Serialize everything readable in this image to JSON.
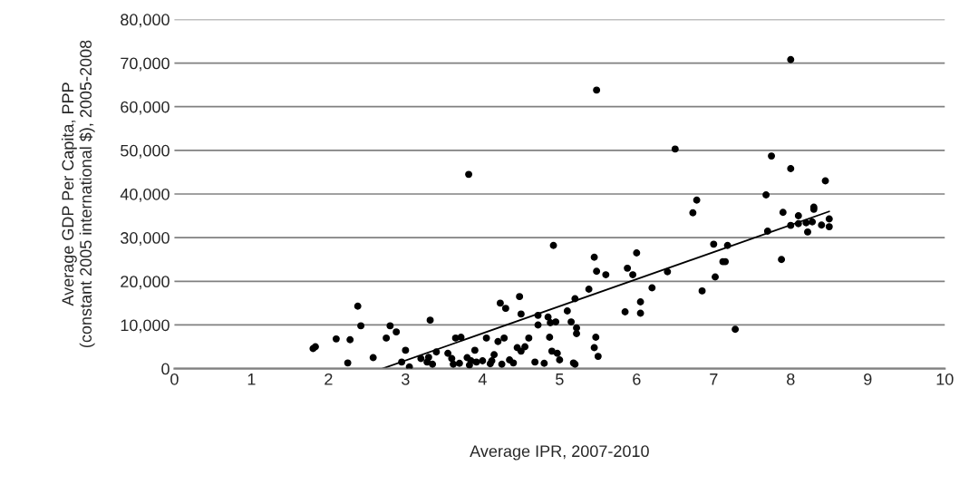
{
  "chart_data": {
    "type": "scatter",
    "xlabel": "Average IPR, 2007-2010",
    "ylabel": "Average GDP Per Capita, PPP\n(constant 2005 international $), 2005-2008",
    "xlim": [
      0,
      10
    ],
    "xticks": [
      0,
      1,
      2,
      3,
      4,
      5,
      6,
      7,
      8,
      9,
      10
    ],
    "ylim": [
      0,
      80000
    ],
    "yticks": [
      {
        "value": 0,
        "label": "0"
      },
      {
        "value": 10000,
        "label": "10,000"
      },
      {
        "value": 20000,
        "label": "20,000"
      },
      {
        "value": 30000,
        "label": "30,000"
      },
      {
        "value": 40000,
        "label": "40,000"
      },
      {
        "value": 50000,
        "label": "50,000"
      },
      {
        "value": 60000,
        "label": "60,000"
      },
      {
        "value": 70000,
        "label": "70,000"
      },
      {
        "value": 80000,
        "label": "80,000"
      }
    ],
    "grid": "y",
    "series": [
      {
        "marker": "circle",
        "color": "#000000",
        "x": [
          1.8,
          1.83,
          2.1,
          2.25,
          2.28,
          2.38,
          2.42,
          2.58,
          2.75,
          2.8,
          2.88,
          2.95,
          3.0,
          3.05,
          3.2,
          3.28,
          3.3,
          3.32,
          3.35,
          3.4,
          3.55,
          3.6,
          3.62,
          3.65,
          3.7,
          3.72,
          3.8,
          3.82,
          3.83,
          3.85,
          3.9,
          3.92,
          4.0,
          4.05,
          4.1,
          4.12,
          4.15,
          4.2,
          4.23,
          4.25,
          4.28,
          4.3,
          4.35,
          4.4,
          4.45,
          4.48,
          4.5,
          4.5,
          4.55,
          4.6,
          4.68,
          4.72,
          4.72,
          4.8,
          4.85,
          4.87,
          4.88,
          4.9,
          4.92,
          4.95,
          4.97,
          5.0,
          5.1,
          5.15,
          5.18,
          5.2,
          5.2,
          5.22,
          5.22,
          5.38,
          5.45,
          5.45,
          5.47,
          5.48,
          5.48,
          5.5,
          5.6,
          5.85,
          5.88,
          5.95,
          6.0,
          6.05,
          6.05,
          6.2,
          6.4,
          6.5,
          6.73,
          6.78,
          6.85,
          7.0,
          7.02,
          7.12,
          7.15,
          7.18,
          7.28,
          7.68,
          7.7,
          7.75,
          7.88,
          7.9,
          8.0,
          8.0,
          8.0,
          8.1,
          8.1,
          8.2,
          8.22,
          8.28,
          8.3,
          8.3,
          8.4,
          8.45,
          8.5,
          8.5
        ],
        "values": [
          4600,
          5000,
          6800,
          1300,
          6600,
          14300,
          9800,
          2500,
          7000,
          9800,
          8400,
          1500,
          4200,
          400,
          2300,
          1500,
          2600,
          11100,
          1000,
          3800,
          3500,
          2300,
          1000,
          7000,
          1200,
          7200,
          2500,
          44500,
          800,
          1800,
          4200,
          1500,
          1800,
          7000,
          1100,
          1800,
          3200,
          6200,
          15000,
          1000,
          7000,
          13800,
          2000,
          1300,
          4800,
          16500,
          12500,
          4000,
          5000,
          7000,
          1500,
          12200,
          10000,
          1200,
          11800,
          7200,
          10500,
          4000,
          28200,
          10700,
          3500,
          2000,
          13200,
          10700,
          1300,
          1000,
          16000,
          9300,
          8000,
          18200,
          25500,
          4800,
          7200,
          63800,
          22300,
          2800,
          21500,
          13000,
          23000,
          21500,
          26500,
          15300,
          12700,
          18500,
          22200,
          50300,
          35700,
          38600,
          17800,
          28500,
          21000,
          24500,
          24500,
          28200,
          9000,
          39800,
          31500,
          48700,
          25000,
          35800,
          70800,
          45800,
          32800,
          35000,
          33200,
          33400,
          31300,
          33600,
          36500,
          37000,
          32900,
          43000,
          34300,
          32500
        ]
      },
      {
        "type": "line",
        "color": "#000000",
        "x": [
          2.7,
          8.5
        ],
        "values": [
          0,
          36000
        ]
      }
    ]
  }
}
